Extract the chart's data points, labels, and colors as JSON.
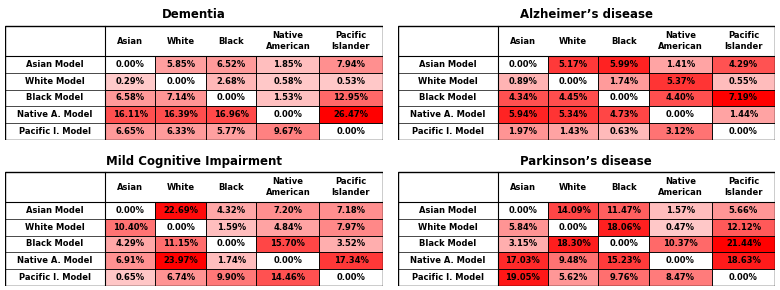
{
  "tables": [
    {
      "title": "Dementia",
      "rows": [
        "Asian Model",
        "White Model",
        "Black Model",
        "Native A. Model",
        "Pacific I. Model"
      ],
      "cols": [
        "Asian",
        "White",
        "Black",
        "Native\nAmerican",
        "Pacific\nIslander"
      ],
      "values": [
        [
          0.0,
          5.85,
          6.52,
          1.85,
          7.94
        ],
        [
          0.29,
          0.0,
          2.68,
          0.58,
          0.53
        ],
        [
          6.58,
          7.14,
          0.0,
          1.53,
          12.95
        ],
        [
          16.11,
          16.39,
          16.96,
          0.0,
          26.47
        ],
        [
          6.65,
          6.33,
          5.77,
          9.67,
          0.0
        ]
      ],
      "labels": [
        [
          "0.00%",
          "5.85%",
          "6.52%",
          "1.85%",
          "7.94%"
        ],
        [
          "0.29%",
          "0.00%",
          "2.68%",
          "0.58%",
          "0.53%"
        ],
        [
          "6.58%",
          "7.14%",
          "0.00%",
          "1.53%",
          "12.95%"
        ],
        [
          "16.11%",
          "16.39%",
          "16.96%",
          "0.00%",
          "26.47%"
        ],
        [
          "6.65%",
          "6.33%",
          "5.77%",
          "9.67%",
          "0.00%"
        ]
      ]
    },
    {
      "title": "Alzheimer’s disease",
      "rows": [
        "Asian Model",
        "White Model",
        "Black Model",
        "Native A. Model",
        "Pacific I. Model"
      ],
      "cols": [
        "Asian",
        "White",
        "Black",
        "Native\nAmerican",
        "Pacific\nIslander"
      ],
      "values": [
        [
          0.0,
          5.17,
          5.99,
          1.41,
          4.29
        ],
        [
          0.89,
          0.0,
          1.74,
          5.37,
          0.55
        ],
        [
          4.34,
          4.45,
          0.0,
          4.4,
          7.19
        ],
        [
          5.94,
          5.34,
          4.73,
          0.0,
          1.44
        ],
        [
          1.97,
          1.43,
          0.63,
          3.12,
          0.0
        ]
      ],
      "labels": [
        [
          "0.00%",
          "5.17%",
          "5.99%",
          "1.41%",
          "4.29%"
        ],
        [
          "0.89%",
          "0.00%",
          "1.74%",
          "5.37%",
          "0.55%"
        ],
        [
          "4.34%",
          "4.45%",
          "0.00%",
          "4.40%",
          "7.19%"
        ],
        [
          "5.94%",
          "5.34%",
          "4.73%",
          "0.00%",
          "1.44%"
        ],
        [
          "1.97%",
          "1.43%",
          "0.63%",
          "3.12%",
          "0.00%"
        ]
      ]
    },
    {
      "title": "Mild Cognitive Impairment",
      "rows": [
        "Asian Model",
        "White Model",
        "Black Model",
        "Native A. Model",
        "Pacific I. Model"
      ],
      "cols": [
        "Asian",
        "White",
        "Black",
        "Native\nAmerican",
        "Pacific\nIslander"
      ],
      "values": [
        [
          0.0,
          22.69,
          4.32,
          7.2,
          7.18
        ],
        [
          10.4,
          0.0,
          1.59,
          4.84,
          7.97
        ],
        [
          4.29,
          11.15,
          0.0,
          15.7,
          3.52
        ],
        [
          6.91,
          23.97,
          1.74,
          0.0,
          17.34
        ],
        [
          0.65,
          6.74,
          9.9,
          14.46,
          0.0
        ]
      ],
      "labels": [
        [
          "0.00%",
          "22.69%",
          "4.32%",
          "7.20%",
          "7.18%"
        ],
        [
          "10.40%",
          "0.00%",
          "1.59%",
          "4.84%",
          "7.97%"
        ],
        [
          "4.29%",
          "11.15%",
          "0.00%",
          "15.70%",
          "3.52%"
        ],
        [
          "6.91%",
          "23.97%",
          "1.74%",
          "0.00%",
          "17.34%"
        ],
        [
          "0.65%",
          "6.74%",
          "9.90%",
          "14.46%",
          "0.00%"
        ]
      ]
    },
    {
      "title": "Parkinson’s disease",
      "rows": [
        "Asian Model",
        "White Model",
        "Black Model",
        "Native A. Model",
        "Pacific I. Model"
      ],
      "cols": [
        "Asian",
        "White",
        "Black",
        "Native\nAmerican",
        "Pacific\nIslander"
      ],
      "values": [
        [
          0.0,
          14.09,
          11.47,
          1.57,
          5.66
        ],
        [
          5.84,
          0.0,
          18.06,
          0.47,
          12.12
        ],
        [
          3.15,
          18.3,
          0.0,
          10.37,
          21.44
        ],
        [
          17.03,
          9.48,
          15.23,
          0.0,
          18.63
        ],
        [
          19.05,
          5.62,
          9.76,
          8.47,
          0.0
        ]
      ],
      "labels": [
        [
          "0.00%",
          "14.09%",
          "11.47%",
          "1.57%",
          "5.66%"
        ],
        [
          "5.84%",
          "0.00%",
          "18.06%",
          "0.47%",
          "12.12%"
        ],
        [
          "3.15%",
          "18.30%",
          "0.00%",
          "10.37%",
          "21.44%"
        ],
        [
          "17.03%",
          "9.48%",
          "15.23%",
          "0.00%",
          "18.63%"
        ],
        [
          "19.05%",
          "5.62%",
          "9.76%",
          "8.47%",
          "0.00%"
        ]
      ]
    }
  ],
  "background_color": "#ffffff",
  "border_color": "#000000",
  "zero_color": "#ffffff",
  "low_color": "#ffcccc",
  "high_color": "#ff0000",
  "title_fontsize": 8.5,
  "cell_fontsize": 6.0,
  "header_fontsize": 6.0
}
